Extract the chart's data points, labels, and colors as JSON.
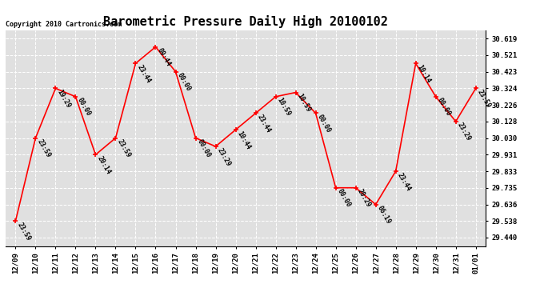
{
  "title": "Barometric Pressure Daily High 20100102",
  "copyright": "Copyright 2010 Cartronics.com",
  "x_labels": [
    "12/09",
    "12/10",
    "12/11",
    "12/12",
    "12/13",
    "12/14",
    "12/15",
    "12/16",
    "12/17",
    "12/18",
    "12/19",
    "12/20",
    "12/21",
    "12/22",
    "12/23",
    "12/24",
    "12/25",
    "12/26",
    "12/27",
    "12/28",
    "12/29",
    "12/30",
    "12/31",
    "01/01"
  ],
  "y_values": [
    29.538,
    30.03,
    30.324,
    30.275,
    29.931,
    30.03,
    30.472,
    30.57,
    30.423,
    30.03,
    29.98,
    30.079,
    30.177,
    30.275,
    30.3,
    30.177,
    29.735,
    29.735,
    29.636,
    29.833,
    30.472,
    30.275,
    30.128,
    30.324
  ],
  "time_labels": [
    "23:59",
    "23:59",
    "19:29",
    "00:00",
    "20:14",
    "23:59",
    "23:44",
    "09:44",
    "00:00",
    "00:00",
    "23:29",
    "10:44",
    "23:44",
    "10:59",
    "10:59",
    "00:00",
    "00:00",
    "20:29",
    "06:19",
    "23:44",
    "10:14",
    "00:00",
    "23:29",
    "23:59"
  ],
  "y_ticks": [
    29.44,
    29.538,
    29.636,
    29.735,
    29.833,
    29.931,
    30.03,
    30.128,
    30.226,
    30.324,
    30.423,
    30.521,
    30.619
  ],
  "y_tick_labels": [
    "29.440",
    "29.538",
    "29.636",
    "29.735",
    "29.833",
    "29.931",
    "30.030",
    "30.128",
    "30.226",
    "30.324",
    "30.423",
    "30.521",
    "30.619"
  ],
  "ylim_min": 29.39,
  "ylim_max": 30.67,
  "line_color": "red",
  "marker_color": "red",
  "bg_color": "#ffffff",
  "plot_bg_color": "#e0e0e0",
  "title_fontsize": 11,
  "tick_fontsize": 6.5,
  "label_fontsize": 6,
  "copyright_fontsize": 6
}
